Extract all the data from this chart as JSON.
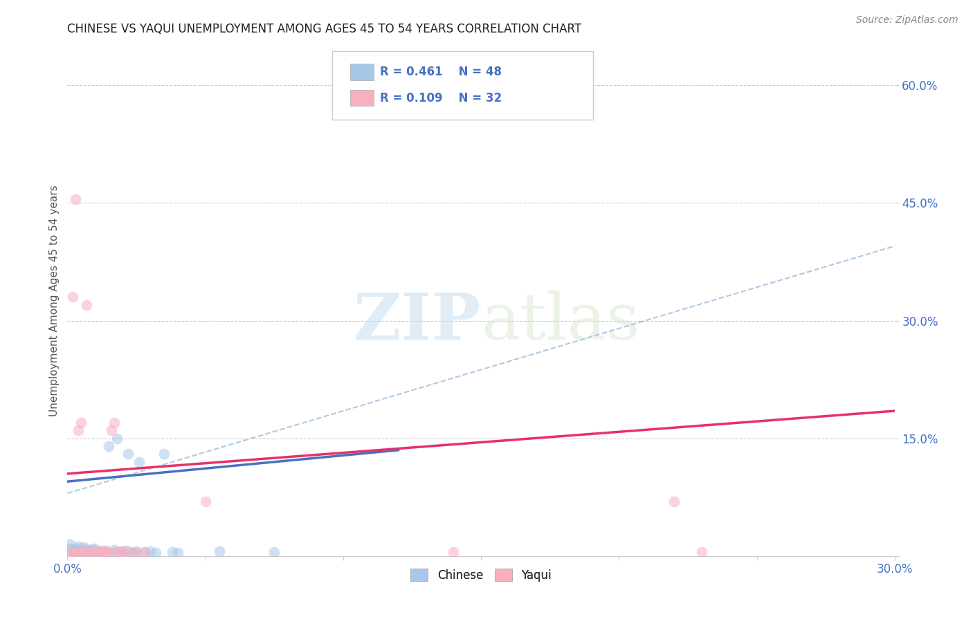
{
  "title": "CHINESE VS YAQUI UNEMPLOYMENT AMONG AGES 45 TO 54 YEARS CORRELATION CHART",
  "source": "Source: ZipAtlas.com",
  "ylabel": "Unemployment Among Ages 45 to 54 years",
  "xlim": [
    0.0,
    0.3
  ],
  "ylim": [
    0.0,
    0.65
  ],
  "yticks": [
    0.0,
    0.15,
    0.3,
    0.45,
    0.6
  ],
  "ytick_labels": [
    "",
    "15.0%",
    "30.0%",
    "45.0%",
    "60.0%"
  ],
  "xticks": [
    0.0,
    0.05,
    0.1,
    0.15,
    0.2,
    0.25,
    0.3
  ],
  "xtick_labels": [
    "0.0%",
    "",
    "",
    "",
    "",
    "",
    "30.0%"
  ],
  "title_color": "#222222",
  "axis_color": "#4472c4",
  "background_color": "#ffffff",
  "grid_color": "#cccccc",
  "watermark_zip": "ZIP",
  "watermark_atlas": "atlas",
  "legend": {
    "chinese_r": "0.461",
    "chinese_n": "48",
    "yaqui_r": "0.109",
    "yaqui_n": "32",
    "chinese_color": "#a8c8e8",
    "yaqui_color": "#f8b0c0",
    "text_color": "#4472c4"
  },
  "chinese_scatter_x": [
    0.001,
    0.001,
    0.001,
    0.002,
    0.002,
    0.003,
    0.003,
    0.003,
    0.004,
    0.004,
    0.004,
    0.005,
    0.005,
    0.006,
    0.006,
    0.006,
    0.007,
    0.007,
    0.008,
    0.008,
    0.009,
    0.009,
    0.01,
    0.01,
    0.011,
    0.012,
    0.013,
    0.014,
    0.015,
    0.016,
    0.017,
    0.018,
    0.019,
    0.02,
    0.021,
    0.022,
    0.023,
    0.024,
    0.025,
    0.026,
    0.028,
    0.03,
    0.032,
    0.035,
    0.038,
    0.04,
    0.055,
    0.075
  ],
  "chinese_scatter_y": [
    0.005,
    0.01,
    0.015,
    0.005,
    0.008,
    0.003,
    0.006,
    0.01,
    0.004,
    0.007,
    0.012,
    0.003,
    0.008,
    0.002,
    0.006,
    0.011,
    0.004,
    0.009,
    0.003,
    0.007,
    0.004,
    0.009,
    0.005,
    0.01,
    0.006,
    0.004,
    0.007,
    0.005,
    0.14,
    0.004,
    0.008,
    0.15,
    0.005,
    0.006,
    0.007,
    0.13,
    0.005,
    0.004,
    0.006,
    0.12,
    0.005,
    0.006,
    0.004,
    0.13,
    0.005,
    0.004,
    0.006,
    0.005
  ],
  "yaqui_scatter_x": [
    0.001,
    0.002,
    0.002,
    0.003,
    0.003,
    0.004,
    0.004,
    0.005,
    0.005,
    0.006,
    0.006,
    0.007,
    0.008,
    0.009,
    0.01,
    0.011,
    0.012,
    0.013,
    0.014,
    0.015,
    0.016,
    0.017,
    0.018,
    0.019,
    0.02,
    0.022,
    0.025,
    0.028,
    0.05,
    0.14,
    0.22,
    0.23
  ],
  "yaqui_scatter_y": [
    0.005,
    0.33,
    0.005,
    0.455,
    0.005,
    0.16,
    0.005,
    0.17,
    0.005,
    0.005,
    0.007,
    0.32,
    0.005,
    0.005,
    0.006,
    0.005,
    0.006,
    0.005,
    0.007,
    0.005,
    0.16,
    0.17,
    0.006,
    0.005,
    0.005,
    0.006,
    0.005,
    0.005,
    0.07,
    0.005,
    0.07,
    0.005
  ],
  "chinese_line": {
    "x0": 0.0,
    "y0": 0.095,
    "x1": 0.12,
    "y1": 0.135
  },
  "yaqui_line": {
    "x0": 0.0,
    "y0": 0.105,
    "x1": 0.3,
    "y1": 0.185
  },
  "chinese_dashed_line": {
    "x0": 0.0,
    "y0": 0.08,
    "x1": 0.3,
    "y1": 0.395
  },
  "chinese_scatter_color": "#a8c8e8",
  "yaqui_scatter_color": "#f8b0c0",
  "chinese_line_color": "#4472c4",
  "yaqui_line_color": "#e8306a",
  "dashed_line_color": "#b0c8e0",
  "marker_size": 130,
  "marker_alpha": 0.55,
  "line_width": 2.5
}
